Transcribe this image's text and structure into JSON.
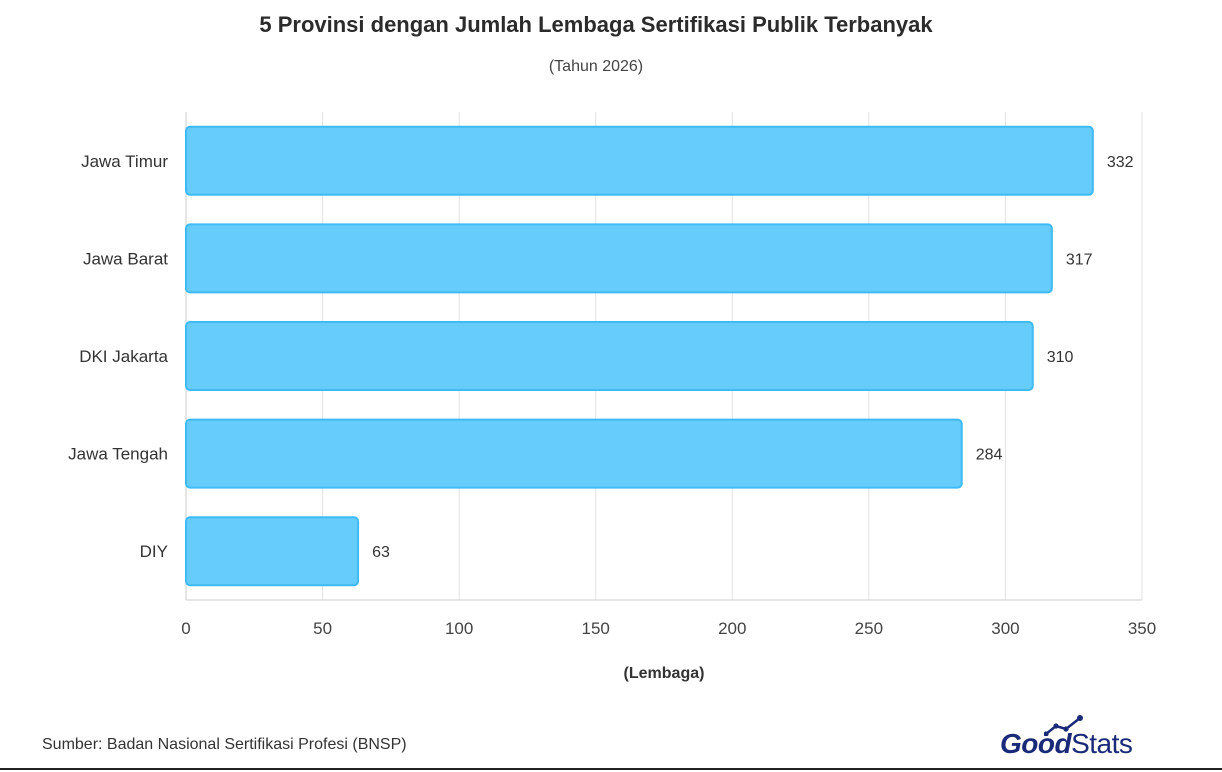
{
  "header": {
    "title": "5 Provinsi dengan Jumlah Lembaga Sertifikasi Publik Terbanyak",
    "subtitle": "(Tahun 2026)"
  },
  "footer": {
    "source": "Sumber: Badan Nasional Sertifikasi Profesi (BNSP)",
    "logo_good": "Good",
    "logo_stats": "Stats"
  },
  "colors": {
    "bar_fill": "#66ccfc",
    "bar_stroke": "#3fbaf3",
    "logo": "#1a2a78",
    "grid": "#e3e3e3"
  },
  "chart_data": {
    "type": "bar",
    "orientation": "horizontal",
    "categories": [
      "Jawa Timur",
      "Jawa Barat",
      "DKI Jakarta",
      "Jawa Tengah",
      "DIY"
    ],
    "values": [
      332,
      317,
      310,
      284,
      63
    ],
    "title": "5 Provinsi dengan Jumlah Lembaga Sertifikasi Publik Terbanyak",
    "subtitle": "(Tahun 2026)",
    "xlabel": "(Lembaga)",
    "ylabel": "",
    "xlim": [
      0,
      350
    ],
    "xticks": [
      0,
      50,
      100,
      150,
      200,
      250,
      300,
      350
    ],
    "grid": true,
    "legend": "none",
    "data_labels": true
  }
}
